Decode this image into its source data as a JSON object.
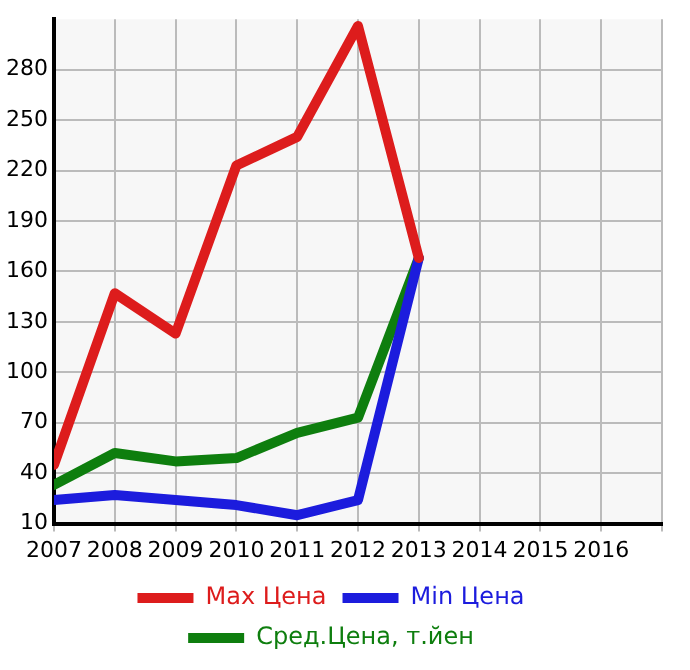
{
  "chart_data": {
    "type": "line",
    "x": [
      2007,
      2008,
      2009,
      2010,
      2011,
      2012,
      2013
    ],
    "xlim": [
      2007,
      2017
    ],
    "xticks": [
      2007,
      2008,
      2009,
      2010,
      2011,
      2012,
      2013,
      2014,
      2015,
      2016,
      {
        "value": 2017,
        "label": null
      }
    ],
    "ylim": [
      10,
      310
    ],
    "yticks": [
      10,
      40,
      70,
      100,
      130,
      160,
      190,
      220,
      250,
      280
    ],
    "series": [
      {
        "name": "Max Цена",
        "color": "#dd1c1c",
        "values": [
          45,
          147,
          123,
          223,
          240,
          306,
          168
        ]
      },
      {
        "name": "Min Цена",
        "color": "#1c1cdd",
        "values": [
          24,
          27,
          24,
          21,
          15,
          24,
          168
        ]
      },
      {
        "name": "Сред.Цена, т.йен",
        "color": "#0e7e0e",
        "values": [
          33,
          52,
          47,
          49,
          64,
          73,
          168
        ]
      }
    ],
    "grid": true,
    "legend": "bottom",
    "marker": "none",
    "line_style": "solid"
  }
}
